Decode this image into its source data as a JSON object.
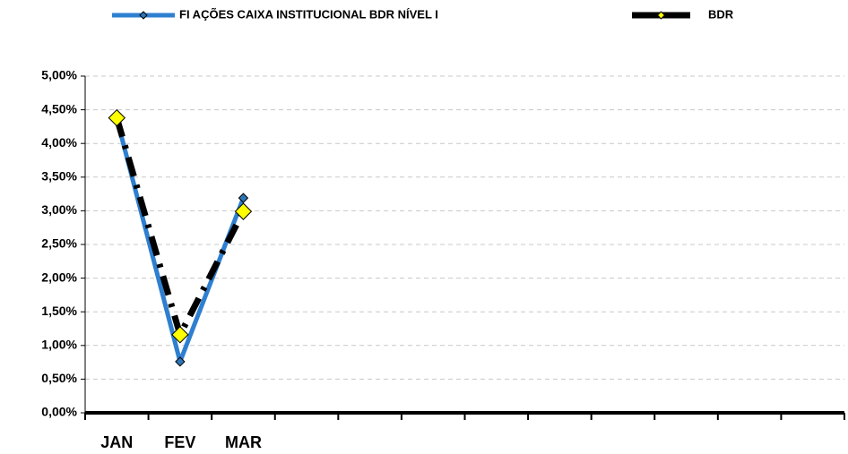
{
  "chart_data": {
    "type": "line",
    "categories": [
      "JAN",
      "FEV",
      "MAR",
      null,
      null,
      null,
      null,
      null,
      null,
      null,
      null,
      null
    ],
    "series": [
      {
        "name": "FI AÇÕES CAIXA INSTITUCIONAL BDR NÍVEL I",
        "color": "#2e7fd0",
        "marker_color": "#2e75b6",
        "values": [
          4.37,
          0.76,
          3.19,
          null,
          null,
          null,
          null,
          null,
          null,
          null,
          null,
          null
        ]
      },
      {
        "name": "BDR",
        "color": "#000000",
        "marker_color": "#ffff00",
        "values": [
          4.38,
          1.16,
          2.99,
          null,
          null,
          null,
          null,
          null,
          null,
          null,
          null,
          null
        ]
      }
    ],
    "ylim": [
      0,
      5
    ],
    "yticks": [
      {
        "value": 0,
        "label": "0,00%"
      },
      {
        "value": 0.5,
        "label": "0,50%"
      },
      {
        "value": 1,
        "label": "1,00%"
      },
      {
        "value": 1.5,
        "label": "1,50%"
      },
      {
        "value": 2,
        "label": "2,00%"
      },
      {
        "value": 2.5,
        "label": "2,50%"
      },
      {
        "value": 3,
        "label": "3,00%"
      },
      {
        "value": 3.5,
        "label": "3,50%"
      },
      {
        "value": 4,
        "label": "4,00%"
      },
      {
        "value": 4.5,
        "label": "4,50%"
      },
      {
        "value": 5,
        "label": "5,00%"
      }
    ],
    "grid": true,
    "legend": "top"
  }
}
